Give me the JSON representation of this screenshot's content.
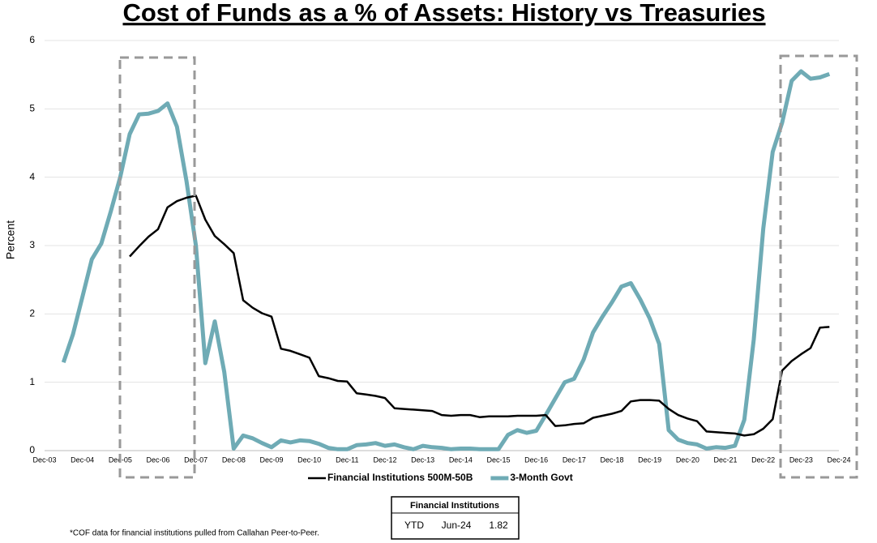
{
  "chart_data": {
    "type": "line",
    "title": "Cost of Funds as a % of Assets: History vs Treasuries",
    "y_label": "Percent",
    "categories": [
      "Dec-03",
      null,
      null,
      null,
      "Dec-04",
      null,
      null,
      null,
      "Dec-05",
      null,
      null,
      null,
      "Dec-06",
      null,
      null,
      null,
      "Dec-07",
      null,
      null,
      null,
      "Dec-08",
      null,
      null,
      null,
      "Dec-09",
      null,
      null,
      null,
      "Dec-10",
      null,
      null,
      null,
      "Dec-11",
      null,
      null,
      null,
      "Dec-12",
      null,
      null,
      null,
      "Dec-13",
      null,
      null,
      null,
      "Dec-14",
      null,
      null,
      null,
      "Dec-15",
      null,
      null,
      null,
      "Dec-16",
      null,
      null,
      null,
      "Dec-17",
      null,
      null,
      null,
      "Dec-18",
      null,
      null,
      null,
      "Dec-19",
      null,
      null,
      null,
      "Dec-20",
      null,
      null,
      null,
      "Dec-21",
      null,
      null,
      null,
      "Dec-22",
      null,
      null,
      null,
      "Dec-23",
      null,
      null,
      null,
      "Dec-24"
    ],
    "series": [
      {
        "name": "Financial Institutions 500M-50B",
        "color": "#000000",
        "values": [
          null,
          null,
          null,
          null,
          null,
          null,
          null,
          null,
          null,
          2.84,
          2.99,
          3.13,
          3.24,
          3.56,
          3.65,
          3.7,
          3.73,
          3.38,
          3.14,
          3.02,
          2.89,
          2.2,
          2.09,
          2.01,
          1.96,
          1.49,
          1.46,
          1.41,
          1.36,
          1.09,
          1.06,
          1.02,
          1.01,
          0.84,
          0.82,
          0.8,
          0.77,
          0.62,
          0.61,
          0.6,
          0.59,
          0.58,
          0.52,
          0.51,
          0.52,
          0.52,
          0.49,
          0.5,
          0.5,
          0.5,
          0.51,
          0.51,
          0.51,
          0.52,
          0.36,
          0.37,
          0.39,
          0.4,
          0.48,
          0.51,
          0.54,
          0.58,
          0.72,
          0.74,
          0.74,
          0.73,
          0.61,
          0.52,
          0.47,
          0.43,
          0.28,
          0.27,
          0.26,
          0.25,
          0.22,
          0.24,
          0.32,
          0.46,
          1.17,
          1.31,
          1.41,
          1.5,
          1.8,
          1.81,
          null
        ]
      },
      {
        "name": "3-Month Govt",
        "color": "#6fabb5",
        "values": [
          null,
          null,
          1.29,
          1.7,
          2.25,
          2.8,
          3.03,
          3.5,
          4.0,
          4.63,
          4.92,
          4.93,
          4.97,
          5.08,
          4.74,
          3.95,
          3.0,
          1.28,
          1.89,
          1.15,
          0.03,
          0.22,
          0.18,
          0.11,
          0.05,
          0.15,
          0.12,
          0.15,
          0.14,
          0.1,
          0.04,
          0.02,
          0.02,
          0.08,
          0.09,
          0.11,
          0.07,
          0.09,
          0.05,
          0.02,
          0.07,
          0.05,
          0.04,
          0.02,
          0.03,
          0.03,
          0.02,
          0.02,
          0.02,
          0.23,
          0.3,
          0.26,
          0.29,
          0.52,
          0.76,
          1.0,
          1.05,
          1.33,
          1.73,
          1.96,
          2.17,
          2.4,
          2.45,
          2.21,
          1.93,
          1.56,
          0.3,
          0.16,
          0.11,
          0.09,
          0.03,
          0.05,
          0.04,
          0.07,
          0.45,
          1.63,
          3.25,
          4.37,
          4.8,
          5.41,
          5.55,
          5.44,
          5.46,
          5.51,
          null
        ]
      }
    ],
    "ylim": [
      0,
      6
    ],
    "yticks": [
      0,
      1,
      2,
      3,
      4,
      5,
      6
    ],
    "grid": true,
    "legend": "bottom",
    "table": {
      "title": "Financial Institutions",
      "row": [
        "YTD",
        "Jun-24",
        "1.82"
      ]
    },
    "footnote": "*COF data for financial institutions pulled from Callahan Peer-to-Peer."
  }
}
